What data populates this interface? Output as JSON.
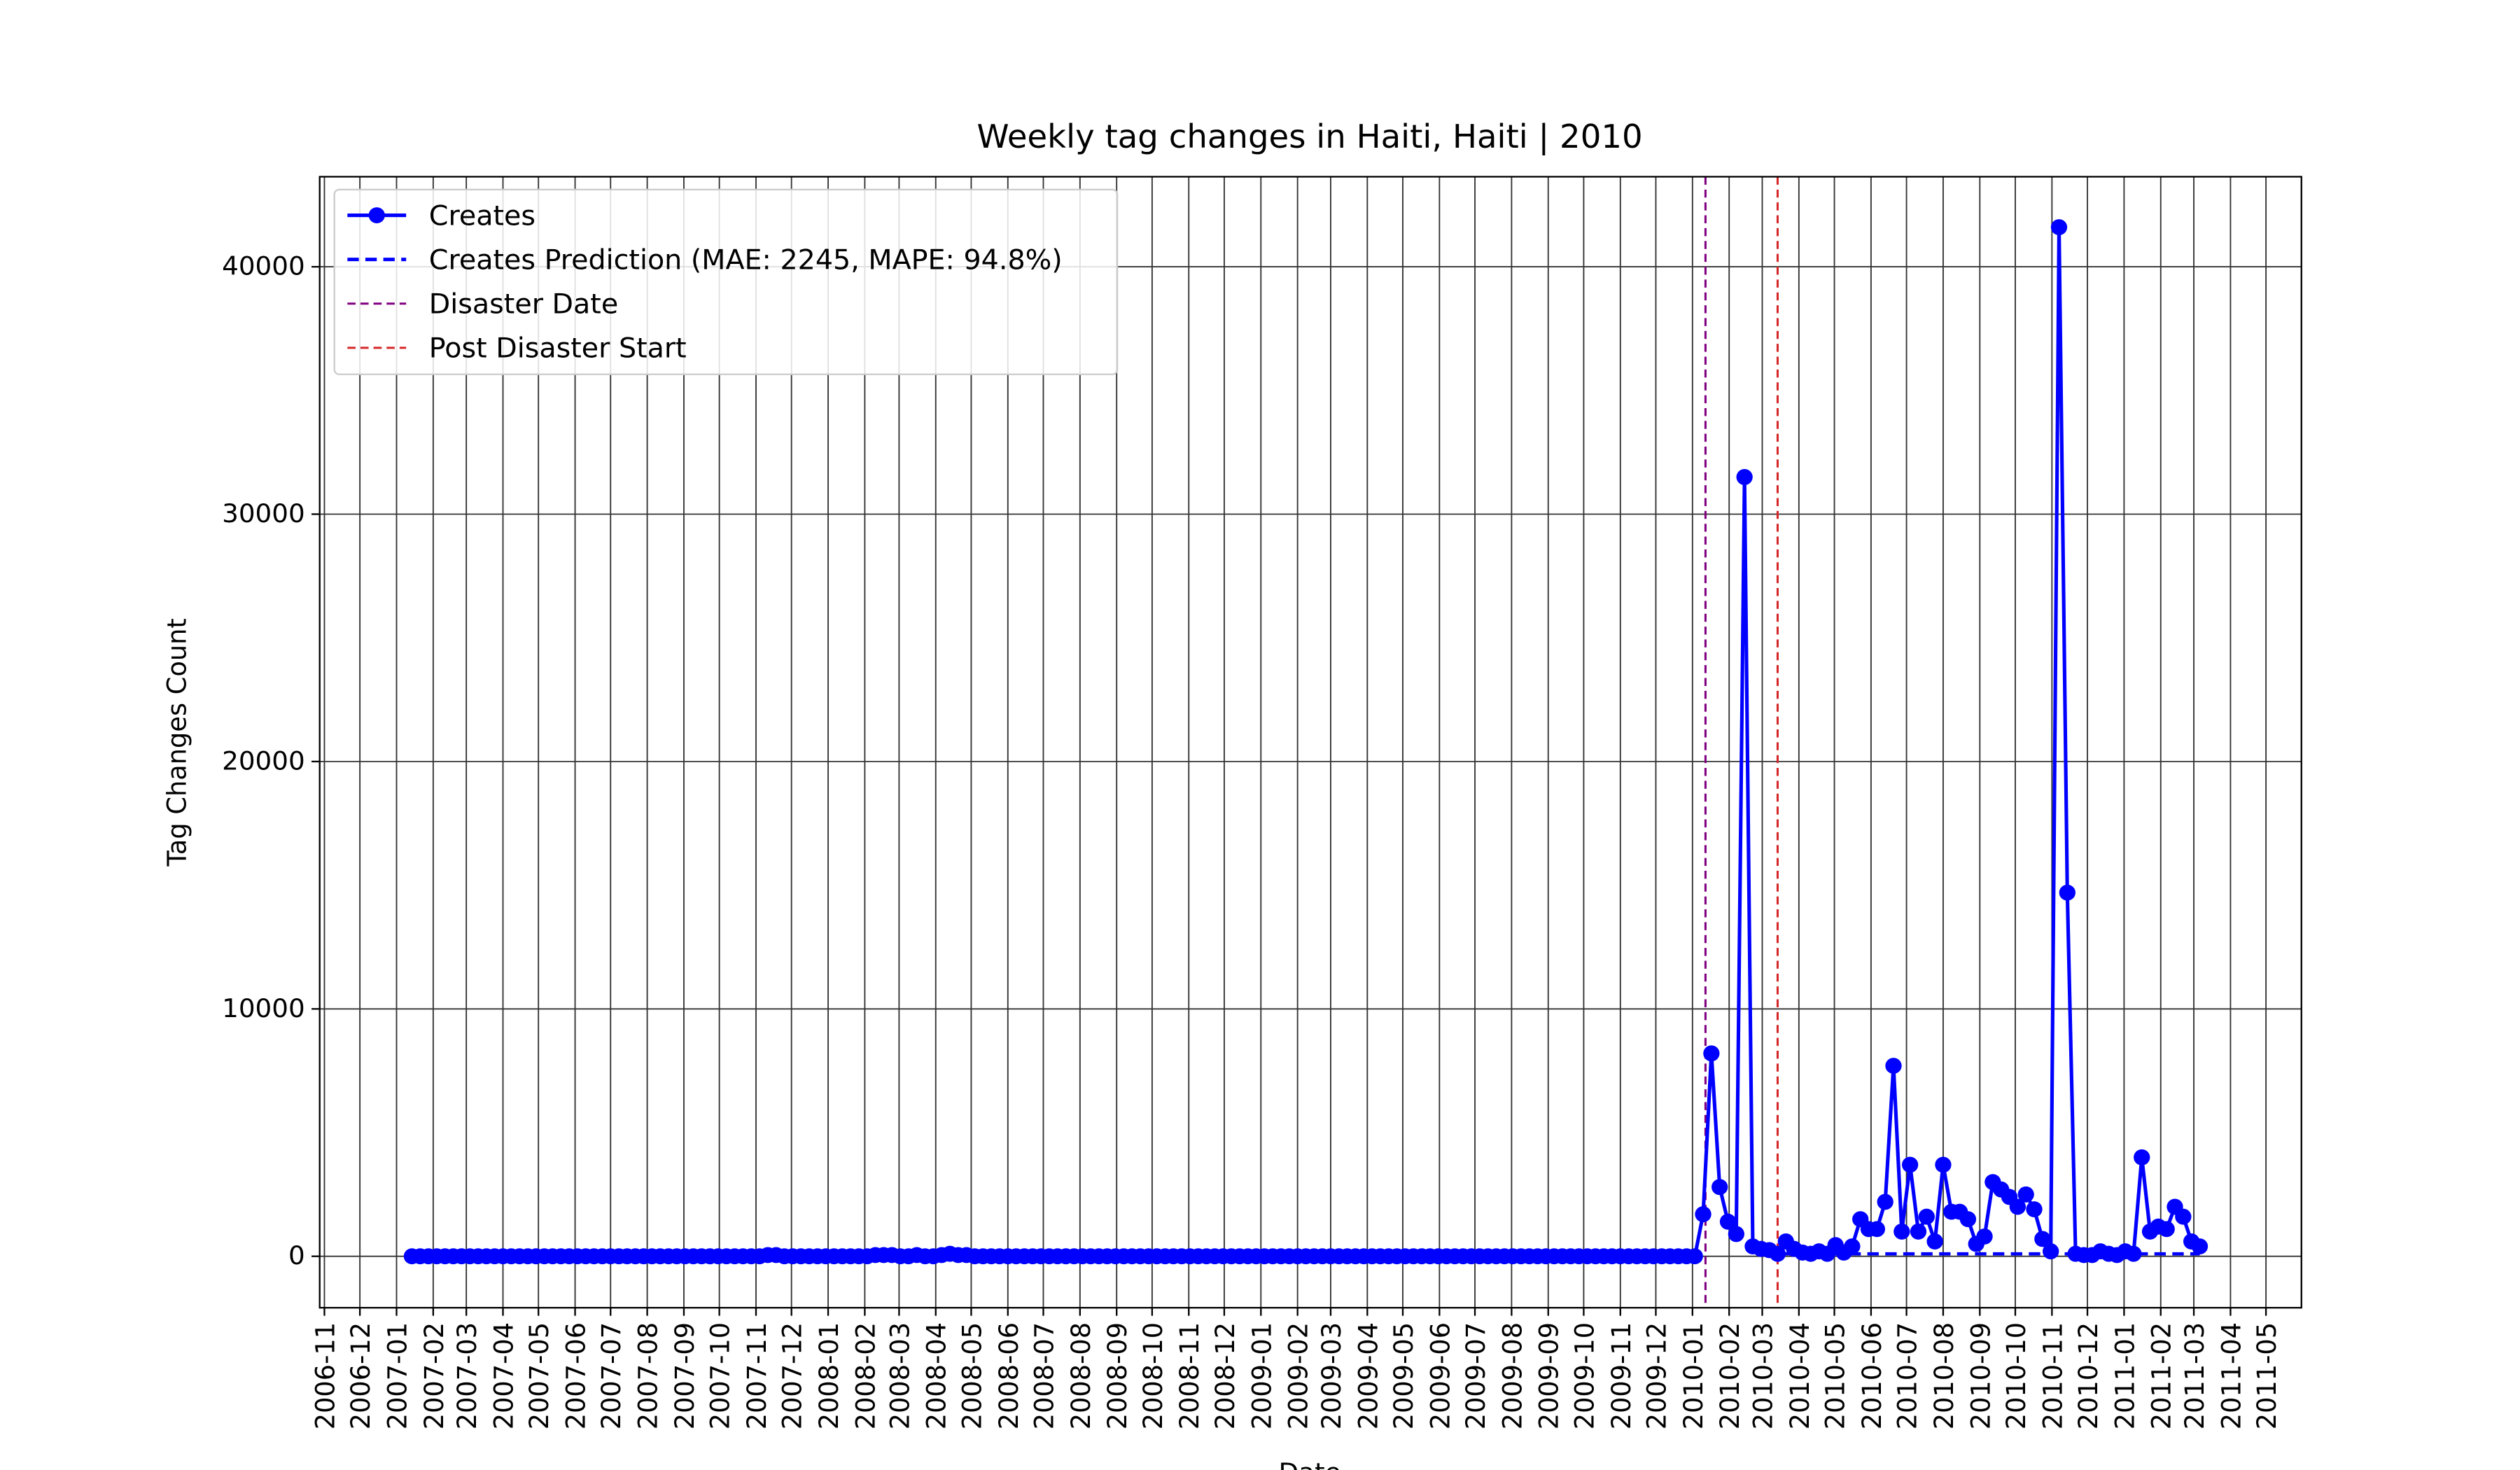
{
  "chart_data": {
    "type": "line",
    "title": "Weekly tag changes in Haiti, Haiti | 2010",
    "xlabel": "Date",
    "ylabel": "Tag Changes Count",
    "xlim": [
      "2006-10-28",
      "2011-05-31"
    ],
    "xticks": [
      "2006-11",
      "2006-12",
      "2007-01",
      "2007-02",
      "2007-03",
      "2007-04",
      "2007-05",
      "2007-06",
      "2007-07",
      "2007-08",
      "2007-09",
      "2007-10",
      "2007-11",
      "2007-12",
      "2008-01",
      "2008-02",
      "2008-03",
      "2008-04",
      "2008-05",
      "2008-06",
      "2008-07",
      "2008-08",
      "2008-09",
      "2008-10",
      "2008-11",
      "2008-12",
      "2009-01",
      "2009-02",
      "2009-03",
      "2009-04",
      "2009-05",
      "2009-06",
      "2009-07",
      "2009-08",
      "2009-09",
      "2009-10",
      "2009-11",
      "2009-12",
      "2010-01",
      "2010-02",
      "2010-03",
      "2010-04",
      "2010-05",
      "2010-06",
      "2010-07",
      "2010-08",
      "2010-09",
      "2010-10",
      "2010-11",
      "2010-12",
      "2011-01",
      "2011-02",
      "2011-03",
      "2011-04",
      "2011-05"
    ],
    "ylim": [
      -2080,
      43640
    ],
    "yticks": [
      0,
      10000,
      20000,
      30000,
      40000
    ],
    "grid": true,
    "legend": "upper left",
    "x": [
      "2007-01-14",
      "2007-01-21",
      "2007-01-28",
      "2007-02-04",
      "2007-02-11",
      "2007-02-18",
      "2007-02-25",
      "2007-03-04",
      "2007-03-11",
      "2007-03-18",
      "2007-03-25",
      "2007-04-01",
      "2007-04-08",
      "2007-04-15",
      "2007-04-22",
      "2007-04-29",
      "2007-05-06",
      "2007-05-13",
      "2007-05-20",
      "2007-05-27",
      "2007-06-03",
      "2007-06-10",
      "2007-06-17",
      "2007-06-24",
      "2007-07-01",
      "2007-07-08",
      "2007-07-15",
      "2007-07-22",
      "2007-07-29",
      "2007-08-05",
      "2007-08-12",
      "2007-08-19",
      "2007-08-26",
      "2007-09-02",
      "2007-09-09",
      "2007-09-16",
      "2007-09-23",
      "2007-09-30",
      "2007-10-07",
      "2007-10-14",
      "2007-10-21",
      "2007-10-28",
      "2007-11-04",
      "2007-11-11",
      "2007-11-18",
      "2007-11-25",
      "2007-12-02",
      "2007-12-09",
      "2007-12-16",
      "2007-12-23",
      "2007-12-30",
      "2008-01-06",
      "2008-01-13",
      "2008-01-20",
      "2008-01-27",
      "2008-02-03",
      "2008-02-10",
      "2008-02-17",
      "2008-02-24",
      "2008-03-02",
      "2008-03-09",
      "2008-03-16",
      "2008-03-23",
      "2008-03-30",
      "2008-04-06",
      "2008-04-13",
      "2008-04-20",
      "2008-04-27",
      "2008-05-04",
      "2008-05-11",
      "2008-05-18",
      "2008-05-25",
      "2008-06-01",
      "2008-06-08",
      "2008-06-15",
      "2008-06-22",
      "2008-06-29",
      "2008-07-06",
      "2008-07-13",
      "2008-07-20",
      "2008-07-27",
      "2008-08-03",
      "2008-08-10",
      "2008-08-17",
      "2008-08-24",
      "2008-08-31",
      "2008-09-07",
      "2008-09-14",
      "2008-09-21",
      "2008-09-28",
      "2008-10-05",
      "2008-10-12",
      "2008-10-19",
      "2008-10-26",
      "2008-11-02",
      "2008-11-09",
      "2008-11-16",
      "2008-11-23",
      "2008-11-30",
      "2008-12-07",
      "2008-12-14",
      "2008-12-21",
      "2008-12-28",
      "2009-01-04",
      "2009-01-11",
      "2009-01-18",
      "2009-01-25",
      "2009-02-01",
      "2009-02-08",
      "2009-02-15",
      "2009-02-22",
      "2009-03-01",
      "2009-03-08",
      "2009-03-15",
      "2009-03-22",
      "2009-03-29",
      "2009-04-05",
      "2009-04-12",
      "2009-04-19",
      "2009-04-26",
      "2009-05-03",
      "2009-05-10",
      "2009-05-17",
      "2009-05-24",
      "2009-05-31",
      "2009-06-07",
      "2009-06-14",
      "2009-06-21",
      "2009-06-28",
      "2009-07-05",
      "2009-07-12",
      "2009-07-19",
      "2009-07-26",
      "2009-08-02",
      "2009-08-09",
      "2009-08-16",
      "2009-08-23",
      "2009-08-30",
      "2009-09-06",
      "2009-09-13",
      "2009-09-20",
      "2009-09-27",
      "2009-10-04",
      "2009-10-11",
      "2009-10-18",
      "2009-10-25",
      "2009-11-01",
      "2009-11-08",
      "2009-11-15",
      "2009-11-22",
      "2009-11-29",
      "2009-12-06",
      "2009-12-13",
      "2009-12-20",
      "2009-12-27",
      "2010-01-03",
      "2010-01-10",
      "2010-01-17",
      "2010-01-24",
      "2010-01-31",
      "2010-02-07",
      "2010-02-14",
      "2010-02-21",
      "2010-02-28",
      "2010-03-07",
      "2010-03-14",
      "2010-03-21",
      "2010-03-28",
      "2010-04-04",
      "2010-04-11",
      "2010-04-18",
      "2010-04-25",
      "2010-05-02",
      "2010-05-09",
      "2010-05-16",
      "2010-05-23",
      "2010-05-30",
      "2010-06-06",
      "2010-06-13",
      "2010-06-20",
      "2010-06-27",
      "2010-07-04",
      "2010-07-11",
      "2010-07-18",
      "2010-07-25",
      "2010-08-01",
      "2010-08-08",
      "2010-08-15",
      "2010-08-22",
      "2010-08-29",
      "2010-09-05",
      "2010-09-12",
      "2010-09-19",
      "2010-09-26",
      "2010-10-03",
      "2010-10-10",
      "2010-10-17",
      "2010-10-24",
      "2010-10-31",
      "2010-11-07",
      "2010-11-14",
      "2010-11-21",
      "2010-11-28",
      "2010-12-05",
      "2010-12-12",
      "2010-12-19",
      "2010-12-26",
      "2011-01-02",
      "2011-01-09",
      "2011-01-16",
      "2011-01-23",
      "2011-01-30",
      "2011-02-06",
      "2011-02-13",
      "2011-02-20",
      "2011-02-27",
      "2011-03-06"
    ],
    "series": [
      {
        "name": "Creates",
        "color": "#0000ff",
        "style": "solid-marker",
        "values": [
          0,
          0,
          0,
          0,
          0,
          0,
          0,
          0,
          0,
          0,
          0,
          0,
          0,
          0,
          0,
          0,
          0,
          0,
          0,
          0,
          0,
          0,
          0,
          0,
          0,
          0,
          0,
          0,
          0,
          0,
          0,
          0,
          0,
          0,
          0,
          0,
          0,
          0,
          0,
          0,
          0,
          0,
          0,
          50,
          50,
          0,
          0,
          0,
          0,
          0,
          0,
          0,
          0,
          0,
          0,
          0,
          50,
          50,
          50,
          0,
          0,
          50,
          0,
          0,
          50,
          100,
          50,
          50,
          0,
          0,
          0,
          0,
          0,
          0,
          0,
          0,
          0,
          0,
          0,
          0,
          0,
          0,
          0,
          0,
          0,
          0,
          0,
          0,
          0,
          0,
          0,
          0,
          0,
          0,
          0,
          0,
          0,
          0,
          0,
          0,
          0,
          0,
          0,
          0,
          0,
          0,
          0,
          0,
          0,
          0,
          0,
          0,
          0,
          0,
          0,
          0,
          0,
          0,
          0,
          0,
          0,
          0,
          0,
          0,
          0,
          0,
          0,
          0,
          0,
          0,
          0,
          0,
          0,
          0,
          0,
          0,
          0,
          0,
          0,
          0,
          0,
          0,
          0,
          0,
          0,
          0,
          0,
          0,
          0,
          0,
          0,
          0,
          0,
          0,
          0,
          0,
          1700,
          8200,
          2800,
          1400,
          900,
          31500,
          400,
          300,
          250,
          100,
          600,
          300,
          150,
          100,
          200,
          100,
          450,
          150,
          400,
          1500,
          1100,
          1100,
          2200,
          7700,
          1000,
          3700,
          1000,
          1600,
          600,
          3700,
          1800,
          1800,
          1500,
          500,
          800,
          3000,
          2700,
          2400,
          2000,
          2500,
          1900,
          700,
          200,
          41600,
          14700,
          100,
          50,
          50,
          200,
          100,
          50,
          200,
          100,
          4000,
          1000,
          1200,
          1100,
          2000,
          1600,
          600,
          400
        ]
      },
      {
        "name": "Creates Prediction (MAE: 2245, MAPE: 94.8%)",
        "color": "#0000ff",
        "style": "dashed",
        "values": [
          null,
          null,
          null,
          null,
          null,
          null,
          null,
          null,
          null,
          null,
          null,
          null,
          null,
          null,
          null,
          null,
          null,
          null,
          null,
          null,
          null,
          null,
          null,
          null,
          null,
          null,
          null,
          null,
          null,
          null,
          null,
          null,
          null,
          null,
          null,
          null,
          null,
          null,
          null,
          null,
          null,
          null,
          null,
          null,
          null,
          null,
          null,
          null,
          null,
          null,
          null,
          null,
          null,
          null,
          null,
          null,
          null,
          null,
          null,
          null,
          null,
          null,
          null,
          null,
          null,
          null,
          null,
          null,
          null,
          null,
          null,
          null,
          null,
          null,
          null,
          null,
          null,
          null,
          null,
          null,
          null,
          null,
          null,
          null,
          null,
          null,
          null,
          null,
          null,
          null,
          null,
          null,
          null,
          null,
          null,
          null,
          null,
          null,
          null,
          null,
          null,
          null,
          null,
          null,
          null,
          null,
          null,
          null,
          null,
          null,
          null,
          null,
          null,
          null,
          null,
          null,
          null,
          null,
          null,
          null,
          null,
          null,
          null,
          null,
          null,
          null,
          null,
          null,
          null,
          null,
          null,
          null,
          null,
          null,
          null,
          null,
          null,
          null,
          null,
          null,
          null,
          null,
          null,
          null,
          null,
          null,
          null,
          null,
          null,
          null,
          null,
          null,
          null,
          null,
          null,
          null,
          null,
          null,
          null,
          null,
          null,
          null,
          null,
          null,
          null,
          100,
          100,
          100,
          100,
          100,
          100,
          100,
          100,
          100,
          100,
          100,
          100,
          100,
          100,
          100,
          100,
          100,
          100,
          100,
          100,
          100,
          100,
          100,
          100,
          100,
          100,
          100,
          100,
          100,
          100,
          100,
          100,
          100,
          100,
          100,
          100,
          100,
          100,
          100,
          100,
          100,
          100,
          100,
          100,
          100,
          100,
          100,
          100,
          100,
          100,
          100,
          100
        ]
      }
    ],
    "vlines": [
      {
        "name": "Disaster Date",
        "x": "2010-01-12",
        "color": "#800080"
      },
      {
        "name": "Post Disaster Start",
        "x": "2010-03-14",
        "color": "#d62728"
      }
    ]
  }
}
